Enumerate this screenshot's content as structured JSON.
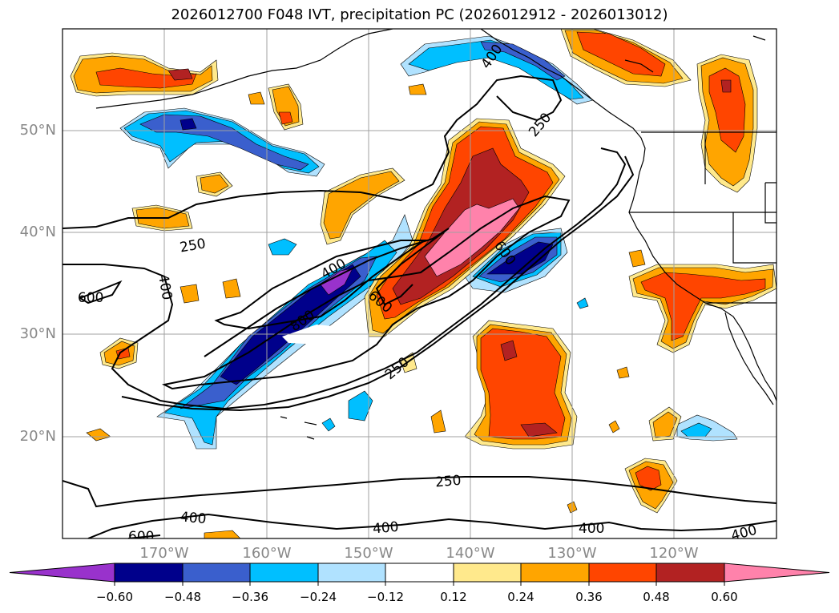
{
  "title": "2026012700 F048 IVT, precipitation PC (2026012912 - 2026013012)",
  "lat_labels": [
    "50°N",
    "40°N",
    "30°N",
    "20°N"
  ],
  "lon_labels": [
    "170°W",
    "160°W",
    "150°W",
    "140°W",
    "130°W",
    "120°W"
  ],
  "contour_labels": [
    "400",
    "250",
    "250",
    "400",
    "400",
    "600",
    "800",
    "600",
    "600",
    "250",
    "250",
    "400",
    "600",
    "400",
    "400",
    "400"
  ],
  "colorbar": {
    "tick_labels": [
      "−0.60",
      "−0.48",
      "−0.36",
      "−0.24",
      "−0.12",
      "0.12",
      "0.24",
      "0.36",
      "0.48",
      "0.60"
    ],
    "colors": [
      "#9932cc",
      "#00008b",
      "#3a5fcd",
      "#00bfff",
      "#b0e2ff",
      "#ffffff",
      "#ffe98c",
      "#ffa500",
      "#ff4500",
      "#b22222",
      "#ff82ab"
    ]
  }
}
